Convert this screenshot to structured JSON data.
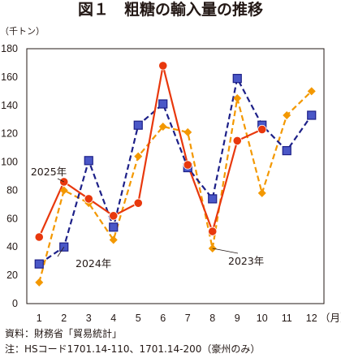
{
  "chart_data": {
    "type": "line",
    "title": "図１　粗糖の輸入量の推移",
    "ylabel": "（千トン）",
    "xunit": "（月）",
    "ylim": [
      0,
      180
    ],
    "yticks": [
      0,
      20,
      40,
      60,
      80,
      100,
      120,
      140,
      160,
      180
    ],
    "x": [
      1,
      2,
      3,
      4,
      5,
      6,
      7,
      8,
      9,
      10,
      11,
      12
    ],
    "grid": false,
    "series": [
      {
        "name": "2025年",
        "color": "#e8380d",
        "dash": "solid",
        "marker": "circle",
        "values": [
          47,
          86,
          74,
          62,
          71,
          168,
          98,
          51,
          115,
          123,
          null,
          null
        ]
      },
      {
        "name": "2024年",
        "color": "#1d2088",
        "dash": "dashed",
        "marker": "square",
        "values": [
          28,
          40,
          101,
          54,
          126,
          141,
          96,
          74,
          159,
          126,
          108,
          133
        ]
      },
      {
        "name": "2023年",
        "color": "#f39800",
        "dash": "dashed",
        "marker": "diamond",
        "values": [
          15,
          80,
          71,
          45,
          104,
          125,
          121,
          39,
          145,
          78,
          133,
          150
        ]
      }
    ]
  },
  "notes": {
    "source": "資料：財務省「貿易統計」",
    "footnote": "注：HSコード1701.14-110、1701.14-200（豪州のみ）"
  }
}
